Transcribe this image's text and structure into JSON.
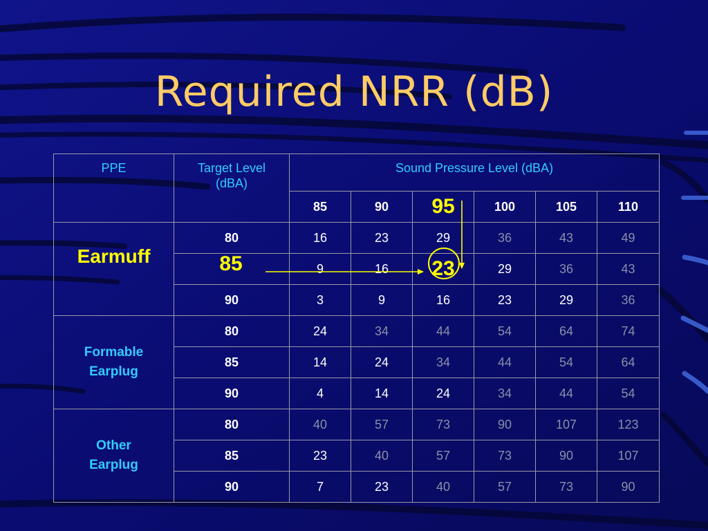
{
  "slide": {
    "title": "Required NRR (dB)",
    "colors": {
      "background": "#0a0c6e",
      "title": "#ffcc66",
      "header": "#33ccff",
      "highlight": "#ffff00",
      "dim": "#8a8fa8"
    }
  },
  "table": {
    "headers": {
      "ppe": "PPE",
      "target": "Target Level (dBA)",
      "spl": "Sound Pressure Level (dBA)",
      "spl_levels": [
        "85",
        "90",
        "95",
        "100",
        "105",
        "110"
      ]
    },
    "groups": [
      {
        "ppe": "Earmuff",
        "rows": [
          {
            "target": "80",
            "values": [
              "16",
              "23",
              "29",
              "36",
              "43",
              "49"
            ]
          },
          {
            "target": "85",
            "values": [
              "9",
              "16",
              "23",
              "29",
              "36",
              "43"
            ]
          },
          {
            "target": "90",
            "values": [
              "3",
              "9",
              "16",
              "23",
              "29",
              "36"
            ]
          }
        ]
      },
      {
        "ppe": "Formable Earplug",
        "rows": [
          {
            "target": "80",
            "values": [
              "24",
              "34",
              "44",
              "54",
              "64",
              "74"
            ]
          },
          {
            "target": "85",
            "values": [
              "14",
              "24",
              "34",
              "44",
              "54",
              "64"
            ]
          },
          {
            "target": "90",
            "values": [
              "4",
              "14",
              "24",
              "34",
              "44",
              "54"
            ]
          }
        ]
      },
      {
        "ppe": "Other Earplug",
        "rows": [
          {
            "target": "80",
            "values": [
              "40",
              "57",
              "73",
              "90",
              "107",
              "123"
            ]
          },
          {
            "target": "85",
            "values": [
              "23",
              "40",
              "57",
              "73",
              "90",
              "107"
            ]
          },
          {
            "target": "90",
            "values": [
              "7",
              "23",
              "40",
              "57",
              "73",
              "90"
            ]
          }
        ]
      }
    ]
  },
  "annotation": {
    "highlight_target": "85",
    "highlight_spl": "95",
    "highlight_result": "23"
  }
}
